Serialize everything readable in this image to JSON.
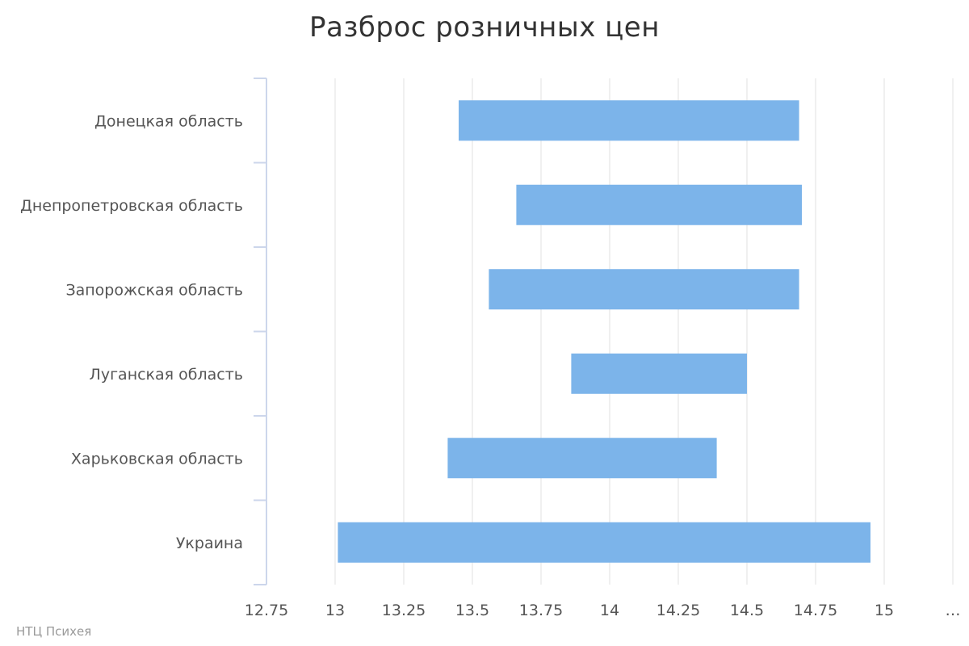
{
  "title": "Разброс розничных цен",
  "credits": "НТЦ Психея",
  "colors": {
    "bar": "#7cb4ea",
    "grid": "#e0e0e0",
    "axis": "#ccd6eb",
    "text": "#555555"
  },
  "chart_data": {
    "type": "bar",
    "orientation": "horizontal",
    "subtype": "floating-range",
    "title": "Разброс розничных цен",
    "xlabel": "",
    "ylabel": "",
    "categories": [
      "Донецкая область",
      "Днепропетровская область",
      "Запорожская область",
      "Луганская область",
      "Харьковская область",
      "Украина"
    ],
    "series": [
      {
        "low": [
          13.45,
          13.66,
          13.56,
          13.86,
          13.41,
          13.01
        ],
        "high": [
          14.69,
          14.7,
          14.69,
          14.5,
          14.39,
          14.95
        ]
      }
    ],
    "xlim": [
      12.75,
      15.25
    ],
    "ticks": [
      "12.75",
      "13",
      "13.25",
      "13.5",
      "13.75",
      "14",
      "14.25",
      "14.5",
      "14.75",
      "15",
      "…"
    ],
    "grid": true,
    "legend": "none"
  }
}
